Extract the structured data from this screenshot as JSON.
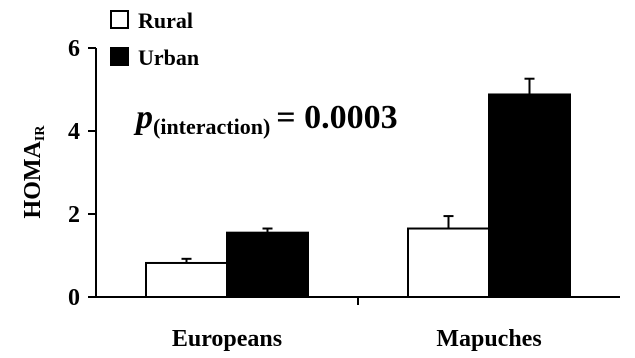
{
  "chart_data": {
    "type": "bar",
    "ylabel": "HOMA",
    "ylabel_subscript": "IR",
    "categories": [
      "Europeans",
      "Mapuches"
    ],
    "series": [
      {
        "name": "Rural",
        "values": [
          0.82,
          1.65
        ],
        "errors": [
          0.1,
          0.3
        ],
        "color": "#ffffff"
      },
      {
        "name": "Urban",
        "values": [
          1.55,
          4.88
        ],
        "errors": [
          0.1,
          0.38
        ],
        "color": "#000000"
      }
    ],
    "ylim": [
      0,
      6
    ],
    "yticks": [
      "0",
      "2",
      "4",
      "6"
    ],
    "legend_position": "top-left",
    "grid": false,
    "annotation": {
      "p_symbol": "p",
      "subscript": "(interaction)",
      "text": "= 0.0003"
    }
  }
}
